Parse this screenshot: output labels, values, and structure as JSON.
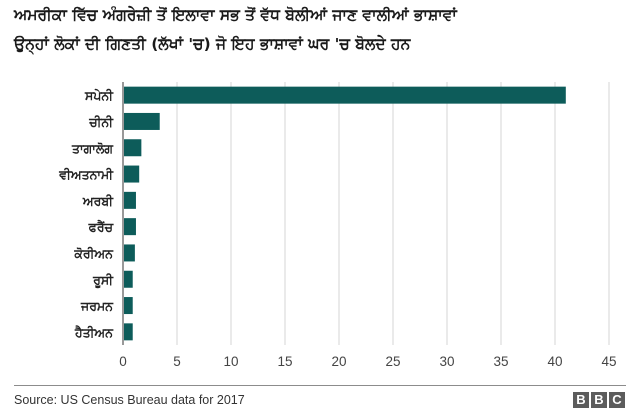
{
  "chart_data": {
    "type": "bar",
    "orientation": "horizontal",
    "title": "ਅਮਰੀਕਾ ਵਿੱਚ ਅੰਗਰੇਜ਼ੀ ਤੋਂ ਇਲਾਵਾ ਸਭ ਤੋਂ ਵੱਧ ਬੋਲੀਆਂ ਜਾਣ ਵਾਲੀਆਂ ਭਾਸ਼ਾਵਾਂ",
    "subtitle": "ਉਨ੍ਹਾਂ ਲੋਕਾਂ ਦੀ ਗਿਣਤੀ (ਲੱਖਾਂ 'ਚ) ਜੋ ਇਹ ਭਾਸ਼ਾਵਾਂ ਘਰ 'ਚ ਬੋਲਦੇ ਹਨ",
    "categories": [
      "ਸਪੇਨੀ",
      "ਚੀਨੀ",
      "ਤਾਗਾਲੋਗ",
      "ਵੀਅਤਨਾਮੀ",
      "ਅਰਬੀ",
      "ਫਰੈਂਚ",
      "ਕੋਰੀਅਨ",
      "ਰੂਸੀ",
      "ਜਰਮਨ",
      "ਹੈਤੀਅਨ"
    ],
    "values": [
      41.0,
      3.4,
      1.7,
      1.5,
      1.2,
      1.2,
      1.1,
      0.9,
      0.9,
      0.9
    ],
    "xlabel": "",
    "ylabel": "",
    "xlim": [
      0,
      45
    ],
    "xticks": [
      0,
      5,
      10,
      15,
      20,
      25,
      30,
      35,
      40,
      45
    ],
    "grid": "vertical",
    "legend": "none",
    "bar_color": "#0d5c5a"
  },
  "source": "Source: US Census Bureau data for 2017",
  "logo": [
    "B",
    "B",
    "C"
  ]
}
